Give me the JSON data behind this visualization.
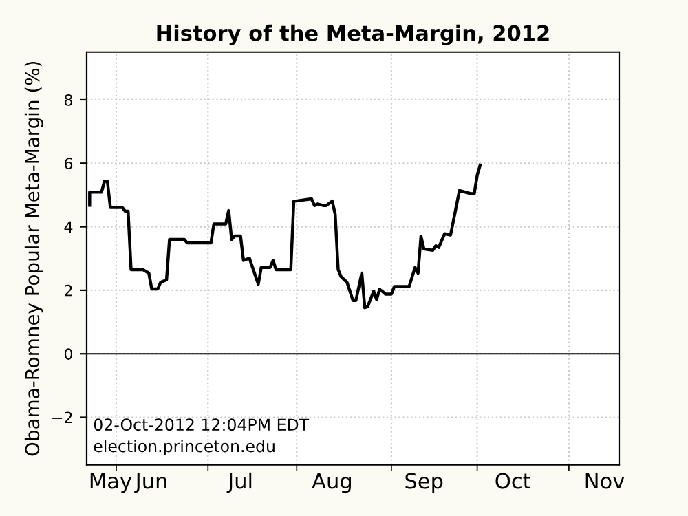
{
  "chart_data": {
    "type": "line",
    "title": "History of the Meta-Margin, 2012",
    "ylabel": "Obama-Romney Popular Meta-Margin (%)",
    "x": [
      "2012-05-11",
      "2012-05-11",
      "2012-05-15",
      "2012-05-16",
      "2012-05-17",
      "2012-05-18",
      "2012-05-22",
      "2012-05-23",
      "2012-05-24",
      "2012-05-25",
      "2012-05-29",
      "2012-05-31",
      "2012-06-01",
      "2012-06-03",
      "2012-06-04",
      "2012-06-06",
      "2012-06-07",
      "2012-06-12",
      "2012-06-13",
      "2012-06-21",
      "2012-06-22",
      "2012-06-26",
      "2012-06-27",
      "2012-06-28",
      "2012-06-29",
      "2012-07-01",
      "2012-07-02",
      "2012-07-04",
      "2012-07-07",
      "2012-07-08",
      "2012-07-11",
      "2012-07-12",
      "2012-07-13",
      "2012-07-18",
      "2012-07-19",
      "2012-07-25",
      "2012-07-26",
      "2012-07-27",
      "2012-07-29",
      "2012-07-30",
      "2012-08-01",
      "2012-08-02",
      "2012-08-03",
      "2012-08-04",
      "2012-08-06",
      "2012-08-08",
      "2012-08-09",
      "2012-08-11",
      "2012-08-12",
      "2012-08-13",
      "2012-08-15",
      "2012-08-16",
      "2012-08-17",
      "2012-08-18",
      "2012-08-19",
      "2012-08-21",
      "2012-08-22",
      "2012-08-27",
      "2012-08-29",
      "2012-08-30",
      "2012-08-31",
      "2012-09-01",
      "2012-09-04",
      "2012-09-05",
      "2012-09-06",
      "2012-09-08",
      "2012-09-10",
      "2012-09-13",
      "2012-09-17",
      "2012-09-18",
      "2012-09-19",
      "2012-09-20"
    ],
    "series": [
      {
        "color": "#000000",
        "values": [
          4.68,
          5.09,
          5.09,
          5.43,
          5.43,
          4.61,
          4.61,
          4.49,
          4.49,
          2.65,
          2.65,
          2.54,
          2.04,
          2.04,
          2.25,
          2.33,
          3.6,
          3.6,
          3.49,
          3.49,
          4.09,
          4.09,
          4.51,
          3.6,
          3.71,
          3.71,
          2.94,
          3.01,
          2.19,
          2.72,
          2.72,
          2.94,
          2.65,
          2.65,
          4.8,
          4.88,
          4.67,
          4.72,
          4.67,
          4.67,
          4.81,
          4.39,
          2.65,
          2.43,
          2.25,
          1.68,
          1.68,
          2.54,
          1.45,
          1.49,
          1.97,
          1.71,
          2.03,
          1.96,
          1.88,
          1.88,
          2.12,
          2.12,
          2.72,
          2.54,
          3.7,
          3.3,
          3.26,
          3.4,
          3.35,
          3.78,
          3.74,
          5.14,
          5.04,
          5.04,
          5.62,
          5.94
        ]
      }
    ],
    "xlim": [
      "2012-05-10",
      "2012-11-06"
    ],
    "xticks": [
      {
        "value": "2012-05-18",
        "label": "May"
      },
      {
        "value": "2012-06-01",
        "label": "Jun"
      },
      {
        "value": "2012-07-01",
        "label": "Jul"
      },
      {
        "value": "2012-08-01",
        "label": "Aug"
      },
      {
        "value": "2012-09-01",
        "label": "Sep"
      },
      {
        "value": "2012-10-01",
        "label": "Oct"
      },
      {
        "value": "2012-11-01",
        "label": "Nov"
      },
      {
        "value": "2012-05-20",
        "label": null
      },
      {
        "value": "2012-06-20",
        "label": null
      },
      {
        "value": "2012-07-20",
        "label": null
      },
      {
        "value": "2012-08-21",
        "label": null
      },
      {
        "value": "2012-09-19",
        "label": null
      },
      {
        "value": "2012-10-20",
        "label": null
      }
    ],
    "ylim": [
      -3.5,
      9.5
    ],
    "yticks": [
      {
        "value": -2,
        "label": "−2"
      },
      0,
      2,
      4,
      6,
      8
    ],
    "grid": true,
    "line_style": "solid",
    "marker": "none",
    "ref_lines": [
      {
        "axis": "y",
        "value": 0,
        "color": "#000000",
        "line_style": "solid"
      }
    ],
    "annotations": [
      "02-Oct-2012 12:04PM EDT",
      "election.princeton.edu"
    ]
  }
}
